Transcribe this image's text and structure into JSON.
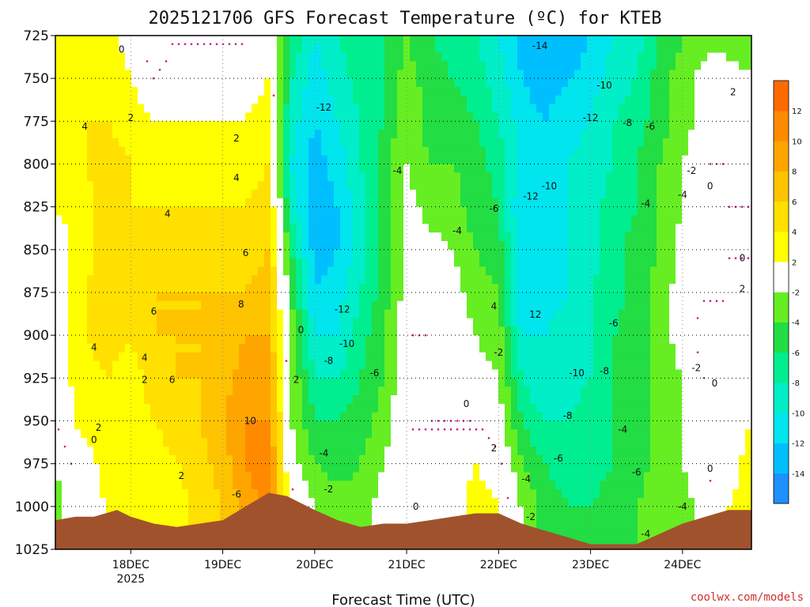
{
  "chart_data": {
    "type": "heatmap",
    "title": "2025121706 GFS Forecast Temperature (ºC) for KTEB",
    "xlabel": "Forecast Time (UTC)",
    "credit": "coolwx.com/models",
    "colors": {
      "terrain": "#a0522d",
      "zero_line": "#c71585",
      "credit": "#d03030",
      "contour": "#000000"
    },
    "y_axis": {
      "unit": "hPa",
      "range": [
        725,
        1025
      ],
      "inverted": true,
      "ticks": [
        "725",
        "750",
        "775",
        "800",
        "825",
        "850",
        "875",
        "900",
        "925",
        "950",
        "975",
        "1000",
        "1025"
      ]
    },
    "x_axis": {
      "range_days": [
        17.18,
        24.75
      ],
      "ticks": [
        {
          "day": 18,
          "label": "18DEC",
          "sub": "2025"
        },
        {
          "day": 19,
          "label": "19DEC",
          "sub": ""
        },
        {
          "day": 20,
          "label": "20DEC",
          "sub": ""
        },
        {
          "day": 21,
          "label": "21DEC",
          "sub": ""
        },
        {
          "day": 22,
          "label": "22DEC",
          "sub": ""
        },
        {
          "day": 23,
          "label": "23DEC",
          "sub": ""
        },
        {
          "day": 24,
          "label": "24DEC",
          "sub": ""
        }
      ]
    },
    "grid": true,
    "colorbar": {
      "placement": "right",
      "bins": [
        {
          "lo": -16,
          "hi": -14,
          "color": "#1e90ff"
        },
        {
          "lo": -14,
          "hi": -12,
          "color": "#00bfff"
        },
        {
          "lo": -12,
          "hi": -10,
          "color": "#00e5ee"
        },
        {
          "lo": -10,
          "hi": -8,
          "color": "#00eec8"
        },
        {
          "lo": -8,
          "hi": -6,
          "color": "#00ee90"
        },
        {
          "lo": -6,
          "hi": -4,
          "color": "#22dd44"
        },
        {
          "lo": -4,
          "hi": -2,
          "color": "#66ee22"
        },
        {
          "lo": -2,
          "hi": 2,
          "color": "#ffffff"
        },
        {
          "lo": 2,
          "hi": 4,
          "color": "#ffff00"
        },
        {
          "lo": 4,
          "hi": 6,
          "color": "#ffe000"
        },
        {
          "lo": 6,
          "hi": 8,
          "color": "#ffc400"
        },
        {
          "lo": 8,
          "hi": 10,
          "color": "#ffa500"
        },
        {
          "lo": 10,
          "hi": 12,
          "color": "#ff8a00"
        },
        {
          "lo": 12,
          "hi": 14,
          "color": "#ff6a00"
        }
      ],
      "labels": [
        "12",
        "10",
        "8",
        "6",
        "4",
        "2",
        "-2",
        "-4",
        "-6",
        "-8",
        "-10",
        "-12",
        "-14"
      ]
    },
    "temperature_profiles": [
      {
        "day": 17.18,
        "values": [
          2,
          2,
          3,
          3,
          2,
          1,
          1,
          1,
          1,
          0,
          -2,
          -3,
          -3
        ]
      },
      {
        "day": 17.5,
        "values": [
          3,
          3,
          4,
          4,
          3,
          3,
          4,
          4,
          3,
          3,
          1,
          1,
          1
        ]
      },
      {
        "day": 17.75,
        "values": [
          3,
          3,
          4,
          5,
          5,
          5,
          5,
          5,
          4,
          4,
          3,
          2,
          2
        ]
      },
      {
        "day": 18.0,
        "values": [
          1,
          2,
          3,
          4,
          4,
          4,
          5,
          4,
          3,
          3,
          2,
          2,
          2
        ]
      },
      {
        "day": 18.25,
        "values": [
          -1,
          0,
          2,
          3,
          4,
          5,
          6,
          6,
          5,
          4,
          3,
          2,
          2
        ]
      },
      {
        "day": 18.5,
        "values": [
          0,
          1,
          2,
          3,
          4,
          5,
          6,
          6,
          6,
          5,
          4,
          3,
          3
        ]
      },
      {
        "day": 18.75,
        "values": [
          0,
          1,
          2,
          3,
          4,
          5,
          6,
          6,
          6,
          6,
          5,
          5,
          5
        ]
      },
      {
        "day": 19.0,
        "values": [
          0,
          1,
          2,
          3,
          4,
          5,
          6,
          7,
          7,
          8,
          7,
          6,
          6
        ]
      },
      {
        "day": 19.25,
        "values": [
          0,
          1,
          2,
          3,
          4,
          5,
          6,
          8,
          9,
          10,
          10,
          9,
          9
        ]
      },
      {
        "day": 19.5,
        "values": [
          1,
          2,
          3,
          4,
          5,
          6,
          7,
          8,
          9,
          10,
          11,
          11,
          11
        ]
      },
      {
        "day": 19.75,
        "values": [
          -6,
          -8,
          -9,
          -10,
          -9,
          -6,
          -4,
          -3,
          -2,
          -2,
          -1,
          1,
          1
        ]
      },
      {
        "day": 20.0,
        "values": [
          -10,
          -11,
          -12,
          -13,
          -14,
          -13,
          -12,
          -10,
          -8,
          -6,
          -4,
          -2,
          -2
        ]
      },
      {
        "day": 20.25,
        "values": [
          -8,
          -9,
          -10,
          -11,
          -12,
          -12,
          -11,
          -10,
          -8,
          -6,
          -5,
          -3,
          -3
        ]
      },
      {
        "day": 20.5,
        "values": [
          -6,
          -7,
          -8,
          -8,
          -9,
          -9,
          -8,
          -7,
          -6,
          -5,
          -4,
          -3,
          -3
        ]
      },
      {
        "day": 20.75,
        "values": [
          -6,
          -6,
          -6,
          -5,
          -5,
          -5,
          -5,
          -4,
          -4,
          -3,
          -2,
          -1,
          -1
        ]
      },
      {
        "day": 21.0,
        "values": [
          -4,
          -3,
          -2,
          -2,
          -1,
          -1,
          -1,
          0,
          0,
          0,
          0,
          0,
          0
        ]
      },
      {
        "day": 21.25,
        "values": [
          -6,
          -5,
          -5,
          -4,
          -3,
          -1,
          0,
          0,
          0,
          0,
          1,
          1,
          1
        ]
      },
      {
        "day": 21.5,
        "values": [
          -7,
          -6,
          -5,
          -4,
          -3,
          -2,
          -1,
          -1,
          -1,
          0,
          1,
          1,
          1
        ]
      },
      {
        "day": 21.75,
        "values": [
          -8,
          -7,
          -6,
          -5,
          -5,
          -4,
          -3,
          -2,
          -1,
          0,
          2,
          3,
          3
        ]
      },
      {
        "day": 22.0,
        "values": [
          -10,
          -9,
          -8,
          -7,
          -6,
          -5,
          -4,
          -3,
          -2,
          -1,
          1,
          2,
          2
        ]
      },
      {
        "day": 22.25,
        "values": [
          -13,
          -12,
          -11,
          -11,
          -12,
          -12,
          -12,
          -10,
          -8,
          -6,
          -4,
          -2,
          -2
        ]
      },
      {
        "day": 22.5,
        "values": [
          -14,
          -13,
          -12,
          -12,
          -11,
          -11,
          -11,
          -10,
          -10,
          -8,
          -6,
          -5,
          -5
        ]
      },
      {
        "day": 22.75,
        "values": [
          -14,
          -12,
          -11,
          -10,
          -10,
          -10,
          -10,
          -9,
          -9,
          -8,
          -7,
          -6,
          -6
        ]
      },
      {
        "day": 23.0,
        "values": [
          -12,
          -11,
          -10,
          -9,
          -9,
          -9,
          -8,
          -8,
          -8,
          -7,
          -7,
          -6,
          -6
        ]
      },
      {
        "day": 23.25,
        "values": [
          -10,
          -9,
          -8,
          -8,
          -7,
          -7,
          -7,
          -6,
          -6,
          -6,
          -6,
          -5,
          -5
        ]
      },
      {
        "day": 23.5,
        "values": [
          -9,
          -8,
          -7,
          -6,
          -6,
          -5,
          -5,
          -5,
          -5,
          -5,
          -5,
          -4,
          -4
        ]
      },
      {
        "day": 23.75,
        "values": [
          -6,
          -5,
          -5,
          -4,
          -4,
          -4,
          -3,
          -3,
          -3,
          -3,
          -3,
          -3,
          -3
        ]
      },
      {
        "day": 24.0,
        "values": [
          -4,
          -3,
          -3,
          -2,
          -2,
          -1,
          -1,
          -1,
          -2,
          -2,
          -2,
          -3,
          -3
        ]
      },
      {
        "day": 24.25,
        "values": [
          -3,
          -1,
          -1,
          0,
          0,
          0,
          0,
          1,
          0,
          0,
          0,
          -1,
          -1
        ]
      },
      {
        "day": 24.5,
        "values": [
          -3,
          -1,
          0,
          0,
          0,
          0,
          0,
          1,
          1,
          1,
          1,
          2,
          2
        ]
      },
      {
        "day": 24.75,
        "values": [
          -3,
          -2,
          -1,
          -1,
          0,
          0,
          1,
          1,
          2,
          2,
          3,
          3,
          3
        ]
      }
    ],
    "terrain": [
      {
        "day": 17.18,
        "p": 1008
      },
      {
        "day": 17.4,
        "p": 1006
      },
      {
        "day": 17.6,
        "p": 1006
      },
      {
        "day": 17.85,
        "p": 1002
      },
      {
        "day": 18.0,
        "p": 1006
      },
      {
        "day": 18.25,
        "p": 1010
      },
      {
        "day": 18.5,
        "p": 1012
      },
      {
        "day": 18.75,
        "p": 1010
      },
      {
        "day": 19.0,
        "p": 1008
      },
      {
        "day": 19.25,
        "p": 1000
      },
      {
        "day": 19.5,
        "p": 992
      },
      {
        "day": 19.7,
        "p": 994
      },
      {
        "day": 20.0,
        "p": 1002
      },
      {
        "day": 20.25,
        "p": 1008
      },
      {
        "day": 20.5,
        "p": 1012
      },
      {
        "day": 20.75,
        "p": 1010
      },
      {
        "day": 21.0,
        "p": 1010
      },
      {
        "day": 21.25,
        "p": 1008
      },
      {
        "day": 21.5,
        "p": 1006
      },
      {
        "day": 21.75,
        "p": 1004
      },
      {
        "day": 22.0,
        "p": 1004
      },
      {
        "day": 22.25,
        "p": 1010
      },
      {
        "day": 22.5,
        "p": 1014
      },
      {
        "day": 22.75,
        "p": 1018
      },
      {
        "day": 23.0,
        "p": 1022
      },
      {
        "day": 23.25,
        "p": 1022
      },
      {
        "day": 23.5,
        "p": 1022
      },
      {
        "day": 23.75,
        "p": 1016
      },
      {
        "day": 24.0,
        "p": 1010
      },
      {
        "day": 24.25,
        "p": 1006
      },
      {
        "day": 24.5,
        "p": 1002
      },
      {
        "day": 24.75,
        "p": 1002
      }
    ],
    "contour_labels": [
      {
        "text": "4",
        "day": 17.5,
        "p": 778
      },
      {
        "text": "2",
        "day": 18.0,
        "p": 773
      },
      {
        "text": "0",
        "day": 17.9,
        "p": 733
      },
      {
        "text": "2",
        "day": 19.15,
        "p": 785
      },
      {
        "text": "4",
        "day": 19.15,
        "p": 808
      },
      {
        "text": "4",
        "day": 18.4,
        "p": 829
      },
      {
        "text": "6",
        "day": 19.25,
        "p": 852
      },
      {
        "text": "6",
        "day": 18.25,
        "p": 886
      },
      {
        "text": "8",
        "day": 19.2,
        "p": 882
      },
      {
        "text": "4",
        "day": 17.6,
        "p": 907
      },
      {
        "text": "4",
        "day": 18.15,
        "p": 913
      },
      {
        "text": "2",
        "day": 18.15,
        "p": 926
      },
      {
        "text": "6",
        "day": 18.45,
        "p": 926
      },
      {
        "text": "10",
        "day": 19.3,
        "p": 950
      },
      {
        "text": "2",
        "day": 17.65,
        "p": 954
      },
      {
        "text": "0",
        "day": 17.6,
        "p": 961
      },
      {
        "text": "2",
        "day": 18.55,
        "p": 982
      },
      {
        "text": "-6",
        "day": 19.15,
        "p": 993
      },
      {
        "text": "0",
        "day": 19.85,
        "p": 897
      },
      {
        "text": "2",
        "day": 19.8,
        "p": 926
      },
      {
        "text": "-12",
        "day": 20.1,
        "p": 767
      },
      {
        "text": "-12",
        "day": 20.3,
        "p": 885
      },
      {
        "text": "-10",
        "day": 20.35,
        "p": 905
      },
      {
        "text": "-8",
        "day": 20.15,
        "p": 915
      },
      {
        "text": "-6",
        "day": 20.65,
        "p": 922
      },
      {
        "text": "-4",
        "day": 20.1,
        "p": 969
      },
      {
        "text": "-2",
        "day": 20.15,
        "p": 990
      },
      {
        "text": "-4",
        "day": 20.9,
        "p": 804
      },
      {
        "text": "0",
        "day": 21.1,
        "p": 1000
      },
      {
        "text": "-4",
        "day": 21.55,
        "p": 839
      },
      {
        "text": "0",
        "day": 21.65,
        "p": 940
      },
      {
        "text": "2",
        "day": 21.95,
        "p": 966
      },
      {
        "text": "-6",
        "day": 21.95,
        "p": 826
      },
      {
        "text": "4",
        "day": 21.95,
        "p": 883
      },
      {
        "text": "-2",
        "day": 22.0,
        "p": 910
      },
      {
        "text": "-12",
        "day": 22.35,
        "p": 819
      },
      {
        "text": "-10",
        "day": 22.55,
        "p": 813
      },
      {
        "text": "12",
        "day": 22.4,
        "p": 888
      },
      {
        "text": "-14",
        "day": 22.45,
        "p": 731
      },
      {
        "text": "-10",
        "day": 23.15,
        "p": 754
      },
      {
        "text": "-12",
        "day": 23.0,
        "p": 773
      },
      {
        "text": "-8",
        "day": 23.4,
        "p": 776
      },
      {
        "text": "-6",
        "day": 23.65,
        "p": 778
      },
      {
        "text": "-4",
        "day": 23.6,
        "p": 823
      },
      {
        "text": "-6",
        "day": 23.25,
        "p": 893
      },
      {
        "text": "-10",
        "day": 22.85,
        "p": 922
      },
      {
        "text": "-8",
        "day": 23.15,
        "p": 921
      },
      {
        "text": "-8",
        "day": 22.75,
        "p": 947
      },
      {
        "text": "-4",
        "day": 23.35,
        "p": 955
      },
      {
        "text": "-6",
        "day": 22.65,
        "p": 972
      },
      {
        "text": "-6",
        "day": 23.5,
        "p": 980
      },
      {
        "text": "-4",
        "day": 22.3,
        "p": 984
      },
      {
        "text": "-2",
        "day": 22.35,
        "p": 1006
      },
      {
        "text": "-4",
        "day": 23.6,
        "p": 1016
      },
      {
        "text": "-4",
        "day": 24.0,
        "p": 1000
      },
      {
        "text": "-2",
        "day": 24.15,
        "p": 919
      },
      {
        "text": "0",
        "day": 24.35,
        "p": 928
      },
      {
        "text": "-2",
        "day": 24.1,
        "p": 804
      },
      {
        "text": "0",
        "day": 24.3,
        "p": 813
      },
      {
        "text": "-4",
        "day": 24.0,
        "p": 818
      },
      {
        "text": "2",
        "day": 24.55,
        "p": 758
      },
      {
        "text": "0",
        "day": 24.65,
        "p": 855
      },
      {
        "text": "2",
        "day": 24.65,
        "p": 873
      },
      {
        "text": "0",
        "day": 24.3,
        "p": 978
      }
    ]
  }
}
